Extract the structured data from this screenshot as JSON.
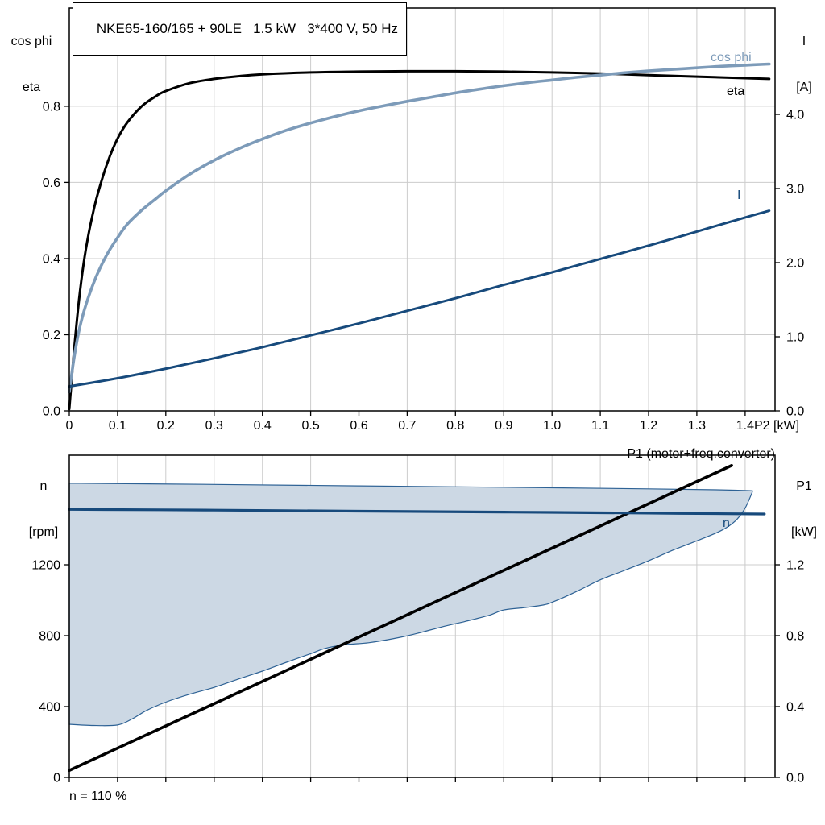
{
  "labels": {
    "title": "NKE65-160/165 + 90LE   1.5 kW   3*400 V, 50 Hz",
    "top_left_axis_line1": "cos phi",
    "top_left_axis_line2": "eta",
    "top_right_axis_line1": "I",
    "top_right_axis_line2": "[A]",
    "bottom_left_axis_line1": "n",
    "bottom_left_axis_line2": "[rpm]",
    "bottom_right_axis_line1": "P1",
    "bottom_right_axis_line2": "[kW]",
    "curve_cos_phi": "cos phi",
    "curve_eta": "eta",
    "curve_I": "I",
    "curve_n": "n",
    "p1_legend": "P1 (motor+freq.converter)",
    "speed_note": "n = 110 %"
  },
  "colors": {
    "cos_phi": "#7d9bb9",
    "navy": "#174a7c",
    "black": "#000000",
    "region_fill": "#ccd8e4",
    "region_stroke": "#2e6295",
    "grid": "#cccccc"
  },
  "chart_data": [
    {
      "id": "top",
      "type": "line",
      "title": "NKE65-160/165 + 90LE   1.5 kW   3*400 V, 50 Hz",
      "x_axis": {
        "min": 0,
        "max": 1.462,
        "unit_label": "P2 [kW]",
        "ticks": [
          {
            "v": 0,
            "label": "0"
          },
          {
            "v": 0.1,
            "label": "0.1"
          },
          {
            "v": 0.2,
            "label": "0.2"
          },
          {
            "v": 0.3,
            "label": "0.3"
          },
          {
            "v": 0.4,
            "label": "0.4"
          },
          {
            "v": 0.5,
            "label": "0.5"
          },
          {
            "v": 0.6,
            "label": "0.6"
          },
          {
            "v": 0.7,
            "label": "0.7"
          },
          {
            "v": 0.8,
            "label": "0.8"
          },
          {
            "v": 0.9,
            "label": "0.9"
          },
          {
            "v": 1.0,
            "label": "1.0"
          },
          {
            "v": 1.1,
            "label": "1.1"
          },
          {
            "v": 1.2,
            "label": "1.2"
          },
          {
            "v": 1.3,
            "label": "1.3"
          },
          {
            "v": 1.4,
            "label": "1.4"
          }
        ]
      },
      "y_left": {
        "label": "cos phi / eta",
        "min": 0,
        "max": 1.058,
        "ticks": [
          {
            "v": 0,
            "label": "0.0"
          },
          {
            "v": 0.2,
            "label": "0.2"
          },
          {
            "v": 0.4,
            "label": "0.4"
          },
          {
            "v": 0.6,
            "label": "0.6"
          },
          {
            "v": 0.8,
            "label": "0.8"
          }
        ]
      },
      "y_right": {
        "label": "I [A]",
        "min": 0,
        "max": 5.435,
        "ticks": [
          {
            "v": 0,
            "label": "0.0"
          },
          {
            "v": 1,
            "label": "1.0"
          },
          {
            "v": 2,
            "label": "2.0"
          },
          {
            "v": 3,
            "label": "3.0"
          },
          {
            "v": 4,
            "label": "4.0"
          }
        ]
      },
      "series": [
        {
          "name": "eta",
          "axis": "left",
          "color": "#000000",
          "width": 3,
          "points": [
            [
              0,
              0.005
            ],
            [
              0.01,
              0.16
            ],
            [
              0.02,
              0.29
            ],
            [
              0.03,
              0.39
            ],
            [
              0.04,
              0.465
            ],
            [
              0.05,
              0.525
            ],
            [
              0.06,
              0.575
            ],
            [
              0.08,
              0.655
            ],
            [
              0.1,
              0.715
            ],
            [
              0.12,
              0.757
            ],
            [
              0.15,
              0.8
            ],
            [
              0.18,
              0.827
            ],
            [
              0.2,
              0.84
            ],
            [
              0.25,
              0.861
            ],
            [
              0.3,
              0.872
            ],
            [
              0.35,
              0.879
            ],
            [
              0.4,
              0.884
            ],
            [
              0.5,
              0.889
            ],
            [
              0.6,
              0.891
            ],
            [
              0.7,
              0.892
            ],
            [
              0.8,
              0.892
            ],
            [
              0.9,
              0.891
            ],
            [
              1.0,
              0.889
            ],
            [
              1.1,
              0.886
            ],
            [
              1.2,
              0.882
            ],
            [
              1.3,
              0.878
            ],
            [
              1.4,
              0.874
            ],
            [
              1.45,
              0.872
            ]
          ]
        },
        {
          "name": "cos phi",
          "axis": "left",
          "color": "#7d9bb9",
          "width": 3.6,
          "points": [
            [
              0,
              0.05
            ],
            [
              0.01,
              0.14
            ],
            [
              0.02,
              0.21
            ],
            [
              0.03,
              0.26
            ],
            [
              0.04,
              0.3
            ],
            [
              0.05,
              0.335
            ],
            [
              0.06,
              0.365
            ],
            [
              0.08,
              0.415
            ],
            [
              0.1,
              0.455
            ],
            [
              0.12,
              0.49
            ],
            [
              0.15,
              0.527
            ],
            [
              0.18,
              0.558
            ],
            [
              0.2,
              0.578
            ],
            [
              0.25,
              0.622
            ],
            [
              0.3,
              0.658
            ],
            [
              0.35,
              0.688
            ],
            [
              0.4,
              0.714
            ],
            [
              0.45,
              0.737
            ],
            [
              0.5,
              0.756
            ],
            [
              0.55,
              0.773
            ],
            [
              0.6,
              0.788
            ],
            [
              0.65,
              0.801
            ],
            [
              0.7,
              0.813
            ],
            [
              0.75,
              0.824
            ],
            [
              0.8,
              0.835
            ],
            [
              0.85,
              0.845
            ],
            [
              0.9,
              0.854
            ],
            [
              0.95,
              0.862
            ],
            [
              1.0,
              0.869
            ],
            [
              1.05,
              0.876
            ],
            [
              1.1,
              0.882
            ],
            [
              1.15,
              0.888
            ],
            [
              1.2,
              0.893
            ],
            [
              1.25,
              0.897
            ],
            [
              1.3,
              0.901
            ],
            [
              1.35,
              0.905
            ],
            [
              1.4,
              0.908
            ],
            [
              1.45,
              0.911
            ]
          ]
        },
        {
          "name": "I",
          "axis": "right",
          "color": "#174a7c",
          "width": 3,
          "points": [
            [
              0,
              0.33
            ],
            [
              0.1,
              0.44
            ],
            [
              0.2,
              0.57
            ],
            [
              0.3,
              0.71
            ],
            [
              0.4,
              0.86
            ],
            [
              0.5,
              1.02
            ],
            [
              0.6,
              1.18
            ],
            [
              0.7,
              1.35
            ],
            [
              0.8,
              1.52
            ],
            [
              0.9,
              1.7
            ],
            [
              1.0,
              1.87
            ],
            [
              1.1,
              2.05
            ],
            [
              1.2,
              2.23
            ],
            [
              1.3,
              2.42
            ],
            [
              1.4,
              2.61
            ],
            [
              1.45,
              2.7
            ]
          ]
        }
      ]
    },
    {
      "id": "bottom",
      "type": "line",
      "title": "",
      "x_axis": {
        "min": 0,
        "max": 1.462,
        "unit_label": "",
        "ticks": [
          {
            "v": 0,
            "label": ""
          },
          {
            "v": 0.1,
            "label": ""
          },
          {
            "v": 0.2,
            "label": ""
          },
          {
            "v": 0.3,
            "label": ""
          },
          {
            "v": 0.4,
            "label": ""
          },
          {
            "v": 0.5,
            "label": ""
          },
          {
            "v": 0.6,
            "label": ""
          },
          {
            "v": 0.7,
            "label": ""
          },
          {
            "v": 0.8,
            "label": ""
          },
          {
            "v": 0.9,
            "label": ""
          },
          {
            "v": 1.0,
            "label": ""
          },
          {
            "v": 1.1,
            "label": ""
          },
          {
            "v": 1.2,
            "label": ""
          },
          {
            "v": 1.3,
            "label": ""
          },
          {
            "v": 1.4,
            "label": ""
          }
        ]
      },
      "y_left": {
        "label": "n [rpm]",
        "min": 0,
        "max": 1818,
        "ticks": [
          {
            "v": 0,
            "label": "0"
          },
          {
            "v": 400,
            "label": "400"
          },
          {
            "v": 800,
            "label": "800"
          },
          {
            "v": 1200,
            "label": "1200"
          }
        ]
      },
      "y_right": {
        "label": "P1 [kW]",
        "min": 0,
        "max": 1.818,
        "ticks": [
          {
            "v": 0,
            "label": "0.0"
          },
          {
            "v": 0.4,
            "label": "0.4"
          },
          {
            "v": 0.8,
            "label": "0.8"
          },
          {
            "v": 1.2,
            "label": "1.2"
          }
        ]
      },
      "region": {
        "name": "speed-control-range",
        "fill": "#ccd8e4",
        "stroke": "#2e6295",
        "stroke_width": 1.2,
        "upper": [
          [
            0,
            1660
          ],
          [
            0.3,
            1653
          ],
          [
            0.6,
            1645
          ],
          [
            0.9,
            1637
          ],
          [
            1.2,
            1628
          ],
          [
            1.35,
            1622
          ],
          [
            1.415,
            1617
          ]
        ],
        "lower": [
          [
            0,
            300
          ],
          [
            0.05,
            293
          ],
          [
            0.1,
            296
          ],
          [
            0.13,
            330
          ],
          [
            0.16,
            378
          ],
          [
            0.2,
            425
          ],
          [
            0.25,
            470
          ],
          [
            0.3,
            508
          ],
          [
            0.35,
            555
          ],
          [
            0.4,
            600
          ],
          [
            0.45,
            650
          ],
          [
            0.5,
            698
          ],
          [
            0.53,
            728
          ],
          [
            0.57,
            748
          ],
          [
            0.62,
            760
          ],
          [
            0.67,
            782
          ],
          [
            0.72,
            812
          ],
          [
            0.77,
            848
          ],
          [
            0.82,
            880
          ],
          [
            0.87,
            915
          ],
          [
            0.9,
            945
          ],
          [
            0.94,
            957
          ],
          [
            0.98,
            972
          ],
          [
            1.0,
            988
          ],
          [
            1.05,
            1048
          ],
          [
            1.1,
            1115
          ],
          [
            1.15,
            1168
          ],
          [
            1.2,
            1222
          ],
          [
            1.25,
            1282
          ],
          [
            1.3,
            1335
          ],
          [
            1.35,
            1392
          ],
          [
            1.38,
            1448
          ],
          [
            1.4,
            1520
          ],
          [
            1.415,
            1610
          ]
        ]
      },
      "series": [
        {
          "name": "P1",
          "axis": "right",
          "color": "#000000",
          "width": 3.6,
          "points": [
            [
              0,
              0.04
            ],
            [
              1.372,
              1.76
            ]
          ]
        },
        {
          "name": "n",
          "axis": "left",
          "color": "#174a7c",
          "width": 3.2,
          "points": [
            [
              0,
              1512
            ],
            [
              0.3,
              1508
            ],
            [
              0.6,
              1502
            ],
            [
              0.9,
              1497
            ],
            [
              1.2,
              1491
            ],
            [
              1.44,
              1486
            ]
          ]
        }
      ]
    }
  ]
}
